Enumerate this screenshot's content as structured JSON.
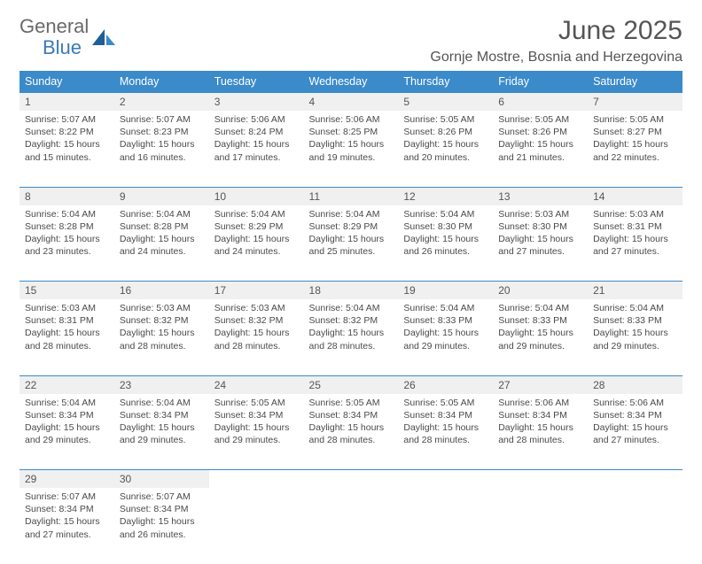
{
  "brand": {
    "name1": "General",
    "name2": "Blue"
  },
  "title": "June 2025",
  "location": "Gornje Mostre, Bosnia and Herzegovina",
  "colors": {
    "header_bg": "#3b8aca",
    "header_text": "#ffffff",
    "daynum_bg": "#f0f0f0",
    "daynum_border": "#3b8aca",
    "text": "#4a4a4a",
    "title_color": "#555555"
  },
  "weekdays": [
    "Sunday",
    "Monday",
    "Tuesday",
    "Wednesday",
    "Thursday",
    "Friday",
    "Saturday"
  ],
  "weeks": [
    {
      "nums": [
        "1",
        "2",
        "3",
        "4",
        "5",
        "6",
        "7"
      ],
      "cells": [
        {
          "sunrise": "Sunrise: 5:07 AM",
          "sunset": "Sunset: 8:22 PM",
          "day1": "Daylight: 15 hours",
          "day2": "and 15 minutes."
        },
        {
          "sunrise": "Sunrise: 5:07 AM",
          "sunset": "Sunset: 8:23 PM",
          "day1": "Daylight: 15 hours",
          "day2": "and 16 minutes."
        },
        {
          "sunrise": "Sunrise: 5:06 AM",
          "sunset": "Sunset: 8:24 PM",
          "day1": "Daylight: 15 hours",
          "day2": "and 17 minutes."
        },
        {
          "sunrise": "Sunrise: 5:06 AM",
          "sunset": "Sunset: 8:25 PM",
          "day1": "Daylight: 15 hours",
          "day2": "and 19 minutes."
        },
        {
          "sunrise": "Sunrise: 5:05 AM",
          "sunset": "Sunset: 8:26 PM",
          "day1": "Daylight: 15 hours",
          "day2": "and 20 minutes."
        },
        {
          "sunrise": "Sunrise: 5:05 AM",
          "sunset": "Sunset: 8:26 PM",
          "day1": "Daylight: 15 hours",
          "day2": "and 21 minutes."
        },
        {
          "sunrise": "Sunrise: 5:05 AM",
          "sunset": "Sunset: 8:27 PM",
          "day1": "Daylight: 15 hours",
          "day2": "and 22 minutes."
        }
      ]
    },
    {
      "nums": [
        "8",
        "9",
        "10",
        "11",
        "12",
        "13",
        "14"
      ],
      "cells": [
        {
          "sunrise": "Sunrise: 5:04 AM",
          "sunset": "Sunset: 8:28 PM",
          "day1": "Daylight: 15 hours",
          "day2": "and 23 minutes."
        },
        {
          "sunrise": "Sunrise: 5:04 AM",
          "sunset": "Sunset: 8:28 PM",
          "day1": "Daylight: 15 hours",
          "day2": "and 24 minutes."
        },
        {
          "sunrise": "Sunrise: 5:04 AM",
          "sunset": "Sunset: 8:29 PM",
          "day1": "Daylight: 15 hours",
          "day2": "and 24 minutes."
        },
        {
          "sunrise": "Sunrise: 5:04 AM",
          "sunset": "Sunset: 8:29 PM",
          "day1": "Daylight: 15 hours",
          "day2": "and 25 minutes."
        },
        {
          "sunrise": "Sunrise: 5:04 AM",
          "sunset": "Sunset: 8:30 PM",
          "day1": "Daylight: 15 hours",
          "day2": "and 26 minutes."
        },
        {
          "sunrise": "Sunrise: 5:03 AM",
          "sunset": "Sunset: 8:30 PM",
          "day1": "Daylight: 15 hours",
          "day2": "and 27 minutes."
        },
        {
          "sunrise": "Sunrise: 5:03 AM",
          "sunset": "Sunset: 8:31 PM",
          "day1": "Daylight: 15 hours",
          "day2": "and 27 minutes."
        }
      ]
    },
    {
      "nums": [
        "15",
        "16",
        "17",
        "18",
        "19",
        "20",
        "21"
      ],
      "cells": [
        {
          "sunrise": "Sunrise: 5:03 AM",
          "sunset": "Sunset: 8:31 PM",
          "day1": "Daylight: 15 hours",
          "day2": "and 28 minutes."
        },
        {
          "sunrise": "Sunrise: 5:03 AM",
          "sunset": "Sunset: 8:32 PM",
          "day1": "Daylight: 15 hours",
          "day2": "and 28 minutes."
        },
        {
          "sunrise": "Sunrise: 5:03 AM",
          "sunset": "Sunset: 8:32 PM",
          "day1": "Daylight: 15 hours",
          "day2": "and 28 minutes."
        },
        {
          "sunrise": "Sunrise: 5:04 AM",
          "sunset": "Sunset: 8:32 PM",
          "day1": "Daylight: 15 hours",
          "day2": "and 28 minutes."
        },
        {
          "sunrise": "Sunrise: 5:04 AM",
          "sunset": "Sunset: 8:33 PM",
          "day1": "Daylight: 15 hours",
          "day2": "and 29 minutes."
        },
        {
          "sunrise": "Sunrise: 5:04 AM",
          "sunset": "Sunset: 8:33 PM",
          "day1": "Daylight: 15 hours",
          "day2": "and 29 minutes."
        },
        {
          "sunrise": "Sunrise: 5:04 AM",
          "sunset": "Sunset: 8:33 PM",
          "day1": "Daylight: 15 hours",
          "day2": "and 29 minutes."
        }
      ]
    },
    {
      "nums": [
        "22",
        "23",
        "24",
        "25",
        "26",
        "27",
        "28"
      ],
      "cells": [
        {
          "sunrise": "Sunrise: 5:04 AM",
          "sunset": "Sunset: 8:34 PM",
          "day1": "Daylight: 15 hours",
          "day2": "and 29 minutes."
        },
        {
          "sunrise": "Sunrise: 5:04 AM",
          "sunset": "Sunset: 8:34 PM",
          "day1": "Daylight: 15 hours",
          "day2": "and 29 minutes."
        },
        {
          "sunrise": "Sunrise: 5:05 AM",
          "sunset": "Sunset: 8:34 PM",
          "day1": "Daylight: 15 hours",
          "day2": "and 29 minutes."
        },
        {
          "sunrise": "Sunrise: 5:05 AM",
          "sunset": "Sunset: 8:34 PM",
          "day1": "Daylight: 15 hours",
          "day2": "and 28 minutes."
        },
        {
          "sunrise": "Sunrise: 5:05 AM",
          "sunset": "Sunset: 8:34 PM",
          "day1": "Daylight: 15 hours",
          "day2": "and 28 minutes."
        },
        {
          "sunrise": "Sunrise: 5:06 AM",
          "sunset": "Sunset: 8:34 PM",
          "day1": "Daylight: 15 hours",
          "day2": "and 28 minutes."
        },
        {
          "sunrise": "Sunrise: 5:06 AM",
          "sunset": "Sunset: 8:34 PM",
          "day1": "Daylight: 15 hours",
          "day2": "and 27 minutes."
        }
      ]
    },
    {
      "nums": [
        "29",
        "30",
        "",
        "",
        "",
        "",
        ""
      ],
      "cells": [
        {
          "sunrise": "Sunrise: 5:07 AM",
          "sunset": "Sunset: 8:34 PM",
          "day1": "Daylight: 15 hours",
          "day2": "and 27 minutes."
        },
        {
          "sunrise": "Sunrise: 5:07 AM",
          "sunset": "Sunset: 8:34 PM",
          "day1": "Daylight: 15 hours",
          "day2": "and 26 minutes."
        },
        null,
        null,
        null,
        null,
        null
      ]
    }
  ]
}
